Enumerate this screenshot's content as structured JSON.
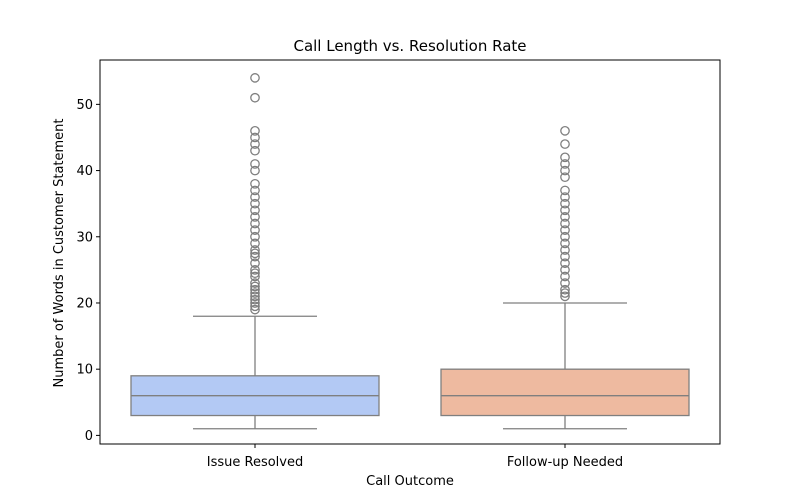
{
  "chart_data": {
    "type": "box",
    "title": "Call Length vs. Resolution Rate",
    "xlabel": "Call Outcome",
    "ylabel": "Number of Words in Customer Statement",
    "categories": [
      "Issue Resolved",
      "Follow-up Needed"
    ],
    "ylim": [
      -1.3,
      56.7
    ],
    "yticks": [
      0,
      10,
      20,
      30,
      40,
      50
    ],
    "grid": false,
    "colors": [
      "#b3c9f4",
      "#eebaa0"
    ],
    "series": [
      {
        "category": "Issue Resolved",
        "min": 1,
        "q1": 3,
        "median": 6,
        "q3": 9,
        "max": 18,
        "outliers": [
          19,
          19.5,
          20,
          20.5,
          21,
          21.5,
          22,
          22.5,
          23,
          24,
          24.5,
          25,
          26,
          27,
          27.5,
          28,
          29,
          30,
          31,
          32,
          33,
          34,
          35,
          36,
          37,
          38,
          40,
          41,
          43,
          44,
          45,
          46,
          51,
          54
        ]
      },
      {
        "category": "Follow-up Needed",
        "min": 1,
        "q1": 3,
        "median": 6,
        "q3": 10,
        "max": 20,
        "outliers": [
          21,
          21.5,
          22,
          23,
          24,
          25,
          26,
          27,
          28,
          29,
          30,
          31,
          32,
          33,
          34,
          35,
          36,
          37,
          39,
          40,
          41,
          42,
          44,
          46
        ]
      }
    ]
  }
}
